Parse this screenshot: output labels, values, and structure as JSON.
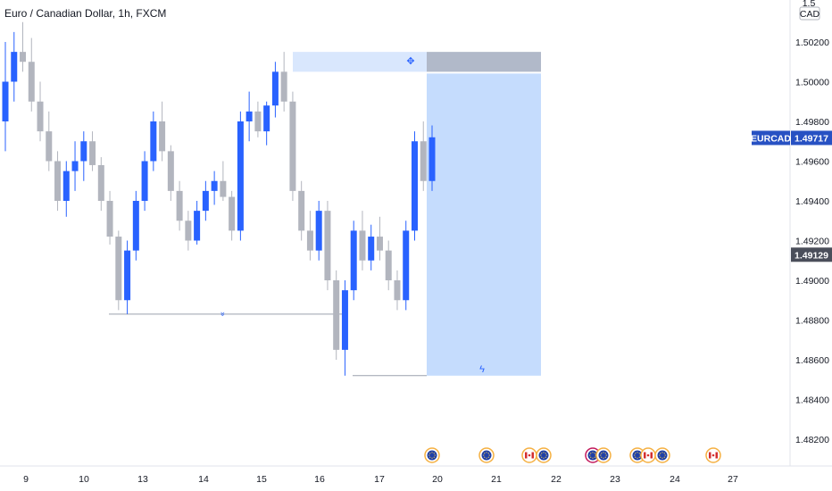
{
  "chart_title": "Euro / Canadian Dollar, 1h, FXCM",
  "colors": {
    "up": "#2962ff",
    "down": "#b2b5be",
    "zone_light": "#c5dcfd",
    "zone_header": "#d9e7fd",
    "zone_grey": "#b1b9c9",
    "line": "#9aa1ad",
    "axis_line": "#e0e3eb",
    "badge_blue": "#2751c3",
    "badge_dark": "#4a4e5a"
  },
  "price_axis": {
    "currency_top": "1.5",
    "currency_label": "CAD",
    "ticks": [
      "1.50200",
      "1.50000",
      "1.49800",
      "1.49600",
      "1.49400",
      "1.49200",
      "1.49000",
      "1.48800",
      "1.48600",
      "1.48400",
      "1.48200"
    ],
    "symbol_badge": "EURCAD",
    "last_price_label": "1.49717",
    "level_label": "1.49129"
  },
  "time_axis": {
    "labels": [
      "9",
      "10",
      "13",
      "14",
      "15",
      "16",
      "17",
      "20",
      "21",
      "22",
      "23",
      "24",
      "27"
    ]
  },
  "events": [
    {
      "type": "eu"
    },
    {
      "type": "eu"
    },
    {
      "type": "ca"
    },
    {
      "type": "eu"
    },
    {
      "type": "us"
    },
    {
      "type": "eu"
    },
    {
      "type": "eu"
    },
    {
      "type": "ca"
    },
    {
      "type": "eu"
    },
    {
      "type": "ca"
    }
  ],
  "chart_data": {
    "type": "candlestick",
    "symbol": "EURCAD",
    "interval": "1h",
    "source": "FXCM",
    "ylim": [
      1.481,
      1.503
    ],
    "x_categories": [
      "9",
      "10",
      "13",
      "14",
      "15",
      "16",
      "17",
      "20",
      "21",
      "22",
      "23",
      "24",
      "27"
    ],
    "last_price": 1.49717,
    "marked_level": 1.49129,
    "horizontal_levels": [
      1.4883,
      1.4852
    ],
    "zone": {
      "top": 1.5015,
      "bottom": 1.4852,
      "header_bottom": 1.5005
    },
    "candles": [
      [
        1.498,
        1.502,
        1.4965,
        1.5
      ],
      [
        1.5,
        1.5025,
        1.499,
        1.5015
      ],
      [
        1.5015,
        1.503,
        1.5005,
        1.501
      ],
      [
        1.501,
        1.5022,
        1.4985,
        1.499
      ],
      [
        1.499,
        1.5,
        1.497,
        1.4975
      ],
      [
        1.4975,
        1.4985,
        1.4955,
        1.496
      ],
      [
        1.496,
        1.4965,
        1.4935,
        1.494
      ],
      [
        1.494,
        1.496,
        1.4932,
        1.4955
      ],
      [
        1.4955,
        1.497,
        1.4945,
        1.496
      ],
      [
        1.496,
        1.4975,
        1.495,
        1.497
      ],
      [
        1.497,
        1.4975,
        1.4955,
        1.4958
      ],
      [
        1.4958,
        1.4962,
        1.4935,
        1.494
      ],
      [
        1.494,
        1.4945,
        1.4918,
        1.4922
      ],
      [
        1.4922,
        1.4925,
        1.4885,
        1.489
      ],
      [
        1.489,
        1.492,
        1.4883,
        1.4915
      ],
      [
        1.4915,
        1.4945,
        1.491,
        1.494
      ],
      [
        1.494,
        1.4965,
        1.4935,
        1.496
      ],
      [
        1.496,
        1.4985,
        1.4955,
        1.498
      ],
      [
        1.498,
        1.499,
        1.496,
        1.4965
      ],
      [
        1.4965,
        1.4968,
        1.494,
        1.4945
      ],
      [
        1.4945,
        1.495,
        1.4925,
        1.493
      ],
      [
        1.493,
        1.4935,
        1.4915,
        1.492
      ],
      [
        1.492,
        1.494,
        1.4918,
        1.4935
      ],
      [
        1.4935,
        1.495,
        1.493,
        1.4945
      ],
      [
        1.4945,
        1.4955,
        1.4938,
        1.495
      ],
      [
        1.495,
        1.496,
        1.494,
        1.4942
      ],
      [
        1.4942,
        1.4945,
        1.492,
        1.4925
      ],
      [
        1.4925,
        1.4985,
        1.492,
        1.498
      ],
      [
        1.498,
        1.4995,
        1.497,
        1.4985
      ],
      [
        1.4985,
        1.499,
        1.4972,
        1.4975
      ],
      [
        1.4975,
        1.499,
        1.4968,
        1.4988
      ],
      [
        1.4988,
        1.501,
        1.4982,
        1.5005
      ],
      [
        1.5005,
        1.5015,
        1.4985,
        1.499
      ],
      [
        1.499,
        1.4995,
        1.494,
        1.4945
      ],
      [
        1.4945,
        1.495,
        1.492,
        1.4925
      ],
      [
        1.4925,
        1.4935,
        1.491,
        1.4915
      ],
      [
        1.4915,
        1.494,
        1.491,
        1.4935
      ],
      [
        1.4935,
        1.494,
        1.4895,
        1.49
      ],
      [
        1.49,
        1.4905,
        1.486,
        1.4865
      ],
      [
        1.4865,
        1.49,
        1.4852,
        1.4895
      ],
      [
        1.4895,
        1.493,
        1.489,
        1.4925
      ],
      [
        1.4925,
        1.4935,
        1.4905,
        1.491
      ],
      [
        1.491,
        1.4928,
        1.4905,
        1.4922
      ],
      [
        1.4922,
        1.4932,
        1.491,
        1.4915
      ],
      [
        1.4915,
        1.492,
        1.4895,
        1.49
      ],
      [
        1.49,
        1.4905,
        1.4885,
        1.489
      ],
      [
        1.489,
        1.493,
        1.4885,
        1.4925
      ],
      [
        1.4925,
        1.4975,
        1.492,
        1.497
      ],
      [
        1.497,
        1.498,
        1.4945,
        1.495
      ],
      [
        1.495,
        1.4978,
        1.4945,
        1.4972
      ]
    ]
  }
}
